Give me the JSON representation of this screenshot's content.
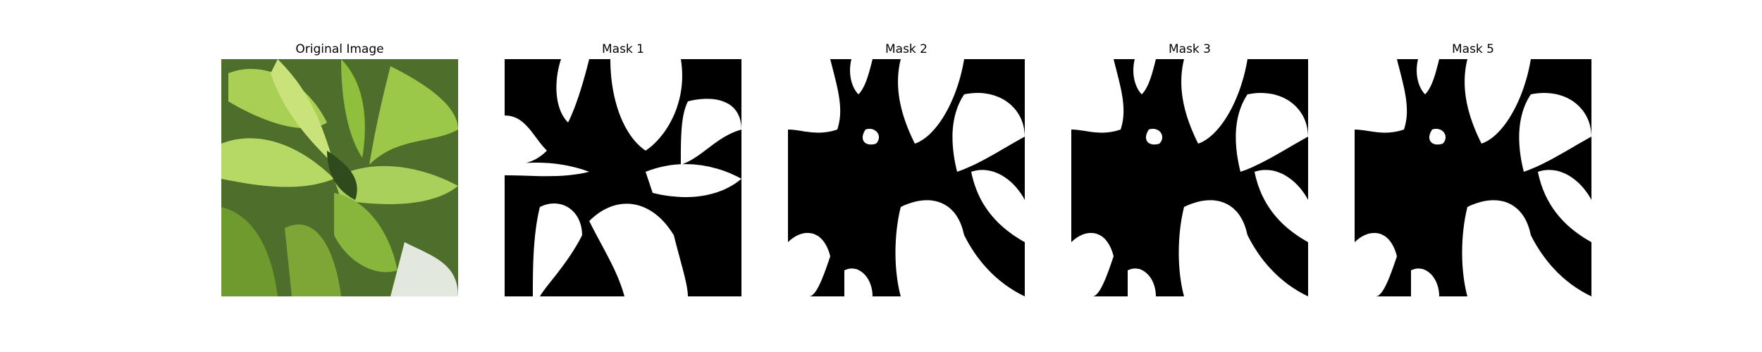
{
  "figure": {
    "panels": [
      {
        "title": "Original Image",
        "kind": "photo",
        "description": "close-up of green leafy plant"
      },
      {
        "title": "Mask 1",
        "kind": "mask"
      },
      {
        "title": "Mask 2",
        "kind": "mask"
      },
      {
        "title": "Mask 3",
        "kind": "mask"
      },
      {
        "title": "Mask 5",
        "kind": "mask"
      }
    ]
  },
  "colors": {
    "background": "#ffffff",
    "mask_foreground": "#ffffff",
    "mask_background": "#000000",
    "leaf_dark": "#2f4a1d",
    "leaf_mid": "#6f9a2d",
    "leaf_light": "#c9e27a"
  }
}
